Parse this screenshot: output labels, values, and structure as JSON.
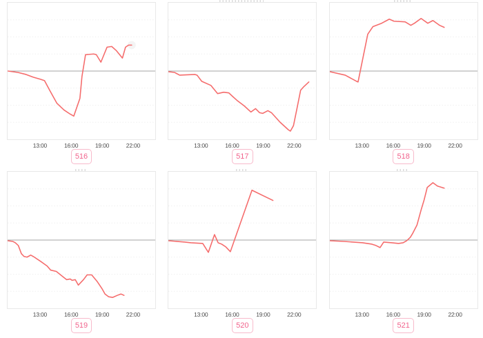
{
  "colors": {
    "line": "#f56c6c",
    "baseline": "#a3a3a3",
    "grid": "#efefef",
    "plot_border": "#e8e8e8",
    "tick_text": "#4c4c4c",
    "badge_text": "#f1638c",
    "badge_border": "#f8bacb"
  },
  "chart_data": {
    "type": "line",
    "layout": "small-multiples 2x3",
    "x_unit": "hour_of_day",
    "x_ticks": [
      "13:00",
      "16:00",
      "19:00",
      "22:00"
    ],
    "x_tick_hours": [
      13,
      16,
      19,
      22
    ],
    "xlim": [
      9.8,
      24.2
    ],
    "ylim": [
      -100,
      100
    ],
    "baseline": 0,
    "grid_values": [
      -75,
      -50,
      -25,
      25,
      50,
      75
    ],
    "grid_on": true,
    "y_axis_labels_visible": false,
    "colors": {
      "line": "#f56c6c",
      "baseline": "#a3a3a3",
      "grid": "#efefef"
    },
    "charts": [
      {
        "label": "516",
        "end_halo": true,
        "points": [
          [
            9.85,
            0
          ],
          [
            10.8,
            -2
          ],
          [
            11.6,
            -5
          ],
          [
            12.3,
            -9
          ],
          [
            13.0,
            -12
          ],
          [
            13.4,
            -14
          ],
          [
            13.9,
            -28
          ],
          [
            14.6,
            -47
          ],
          [
            15.3,
            -57
          ],
          [
            15.9,
            -63
          ],
          [
            16.25,
            -66
          ],
          [
            16.85,
            -40
          ],
          [
            17.05,
            -8
          ],
          [
            17.4,
            24
          ],
          [
            18.2,
            25
          ],
          [
            18.45,
            24
          ],
          [
            18.9,
            13
          ],
          [
            19.5,
            35
          ],
          [
            19.95,
            36
          ],
          [
            20.4,
            30
          ],
          [
            21.0,
            19
          ],
          [
            21.3,
            35
          ],
          [
            21.6,
            38
          ],
          [
            21.9,
            38
          ]
        ]
      },
      {
        "label": "517",
        "points": [
          [
            9.83,
            -1
          ],
          [
            10.4,
            -2
          ],
          [
            10.9,
            -6
          ],
          [
            12.4,
            -5
          ],
          [
            12.6,
            -6
          ],
          [
            13.05,
            -15
          ],
          [
            13.95,
            -21
          ],
          [
            14.6,
            -33
          ],
          [
            15.2,
            -31
          ],
          [
            15.7,
            -32
          ],
          [
            16.05,
            -37
          ],
          [
            16.5,
            -43
          ],
          [
            17.2,
            -51
          ],
          [
            17.85,
            -60
          ],
          [
            18.3,
            -55
          ],
          [
            18.7,
            -61
          ],
          [
            19.0,
            -62
          ],
          [
            19.5,
            -58
          ],
          [
            19.85,
            -61
          ],
          [
            20.7,
            -75
          ],
          [
            21.5,
            -86
          ],
          [
            21.7,
            -88
          ],
          [
            22.0,
            -80
          ],
          [
            22.3,
            -58
          ],
          [
            22.7,
            -28
          ],
          [
            23.0,
            -23
          ],
          [
            23.5,
            -16
          ]
        ]
      },
      {
        "label": "518",
        "points": [
          [
            9.83,
            -1
          ],
          [
            11.3,
            -6
          ],
          [
            12.4,
            -15
          ],
          [
            12.55,
            -16
          ],
          [
            13.5,
            54
          ],
          [
            14.0,
            65
          ],
          [
            14.85,
            70
          ],
          [
            15.6,
            76
          ],
          [
            16.05,
            73
          ],
          [
            17.15,
            72
          ],
          [
            17.7,
            67
          ],
          [
            18.05,
            70
          ],
          [
            18.7,
            77
          ],
          [
            19.35,
            70
          ],
          [
            19.85,
            74
          ],
          [
            20.5,
            67
          ],
          [
            20.95,
            64
          ]
        ]
      },
      {
        "label": "519",
        "points": [
          [
            9.83,
            -1
          ],
          [
            10.3,
            -2
          ],
          [
            10.55,
            -4
          ],
          [
            10.85,
            -8
          ],
          [
            11.15,
            -20
          ],
          [
            11.4,
            -24
          ],
          [
            11.7,
            -25
          ],
          [
            12.05,
            -22
          ],
          [
            12.3,
            -24
          ],
          [
            13.0,
            -31
          ],
          [
            13.65,
            -38
          ],
          [
            14.0,
            -44
          ],
          [
            14.55,
            -46
          ],
          [
            15.05,
            -52
          ],
          [
            15.55,
            -58
          ],
          [
            15.9,
            -57
          ],
          [
            16.1,
            -59
          ],
          [
            16.4,
            -58
          ],
          [
            16.7,
            -66
          ],
          [
            17.2,
            -58
          ],
          [
            17.55,
            -51
          ],
          [
            18.0,
            -51
          ],
          [
            18.55,
            -61
          ],
          [
            19.0,
            -71
          ],
          [
            19.3,
            -79
          ],
          [
            19.65,
            -83
          ],
          [
            20.05,
            -84
          ],
          [
            20.5,
            -81
          ],
          [
            20.85,
            -79
          ],
          [
            21.15,
            -81
          ]
        ]
      },
      {
        "label": "520",
        "points": [
          [
            9.83,
            -1
          ],
          [
            11.4,
            -3
          ],
          [
            12.0,
            -4
          ],
          [
            13.15,
            -5
          ],
          [
            13.7,
            -18
          ],
          [
            14.3,
            8
          ],
          [
            14.65,
            -4
          ],
          [
            15.0,
            -6
          ],
          [
            15.4,
            -10
          ],
          [
            15.85,
            -17
          ],
          [
            17.95,
            73
          ],
          [
            20.0,
            58
          ]
        ]
      },
      {
        "label": "521",
        "points": [
          [
            9.83,
            -1
          ],
          [
            11.2,
            -2
          ],
          [
            13.0,
            -4
          ],
          [
            13.9,
            -6
          ],
          [
            14.3,
            -8
          ],
          [
            14.7,
            -11
          ],
          [
            15.05,
            -3
          ],
          [
            15.85,
            -4
          ],
          [
            16.5,
            -5
          ],
          [
            16.95,
            -4
          ],
          [
            17.3,
            -1
          ],
          [
            17.65,
            4
          ],
          [
            17.85,
            9
          ],
          [
            18.3,
            22
          ],
          [
            18.7,
            44
          ],
          [
            19.0,
            59
          ],
          [
            19.3,
            77
          ],
          [
            19.85,
            84
          ],
          [
            20.3,
            79
          ],
          [
            20.95,
            76
          ]
        ]
      }
    ]
  }
}
